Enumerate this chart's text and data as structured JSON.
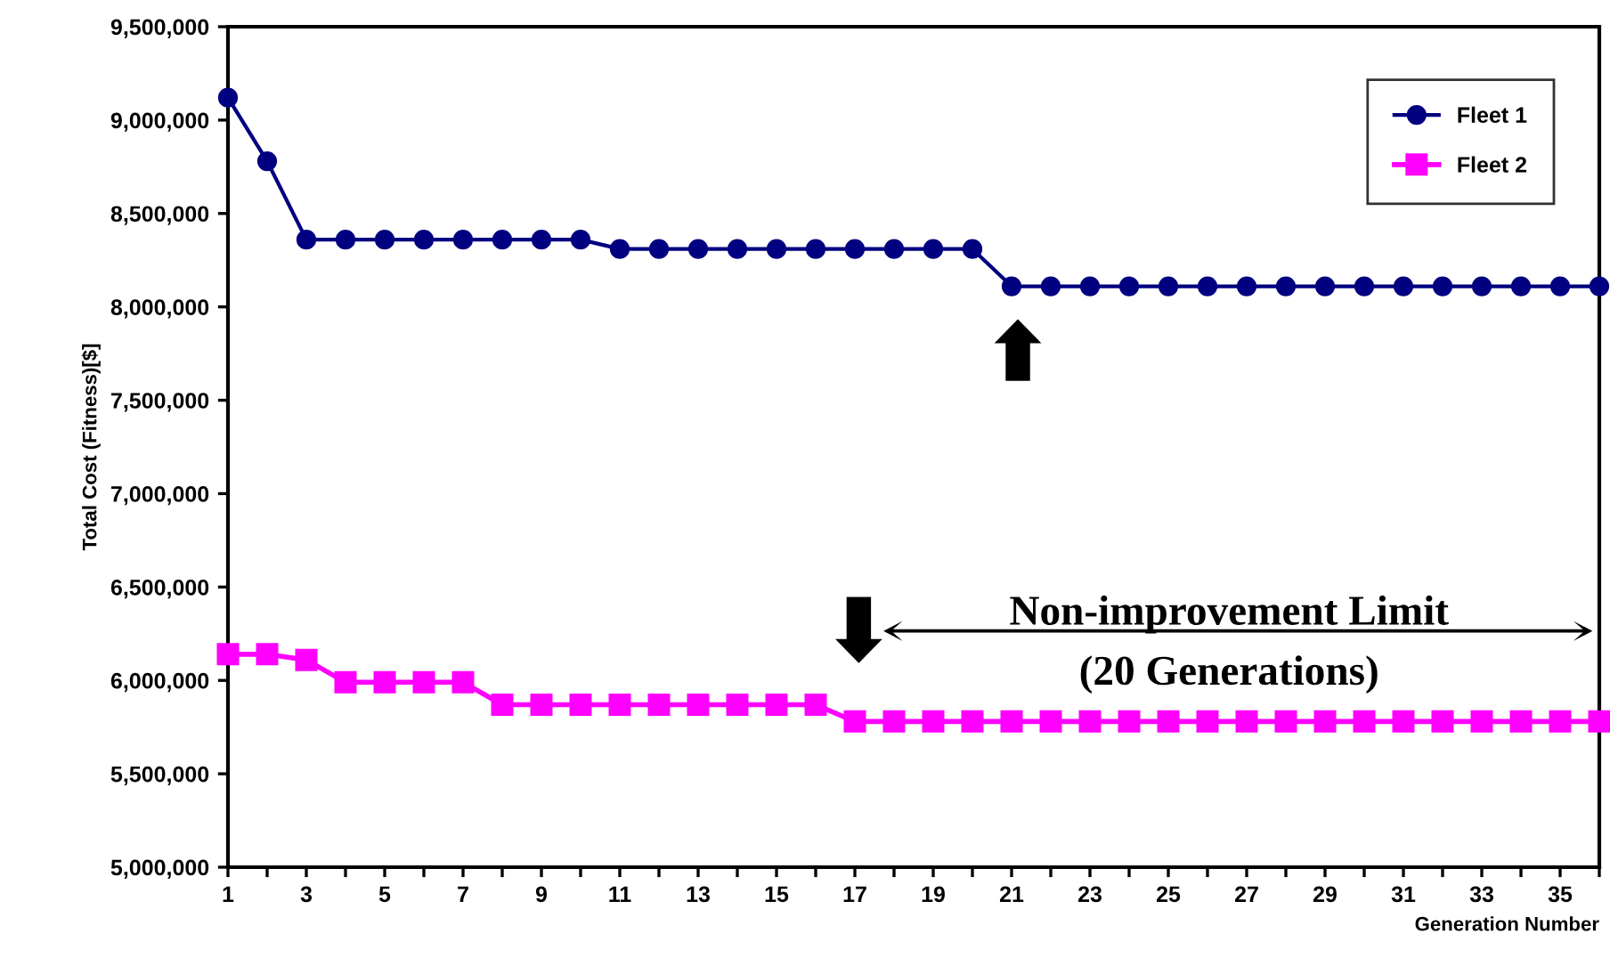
{
  "chart_data": {
    "type": "line",
    "xlabel": "Generation Number",
    "ylabel": "Total Cost (Fitness)[$]",
    "x": [
      1,
      2,
      3,
      4,
      5,
      6,
      7,
      8,
      9,
      10,
      11,
      12,
      13,
      14,
      15,
      16,
      17,
      18,
      19,
      20,
      21,
      22,
      23,
      24,
      25,
      26,
      27,
      28,
      29,
      30,
      31,
      32,
      33,
      34,
      35,
      36
    ],
    "series": [
      {
        "name": "Fleet 1",
        "color": "#000080",
        "marker": "circle",
        "values": [
          9120000,
          8780000,
          8360000,
          8360000,
          8360000,
          8360000,
          8360000,
          8360000,
          8360000,
          8360000,
          8310000,
          8310000,
          8310000,
          8310000,
          8310000,
          8310000,
          8310000,
          8310000,
          8310000,
          8310000,
          8110000,
          8110000,
          8110000,
          8110000,
          8110000,
          8110000,
          8110000,
          8110000,
          8110000,
          8110000,
          8110000,
          8110000,
          8110000,
          8110000,
          8110000,
          8110000
        ]
      },
      {
        "name": "Fleet 2",
        "color": "#ff00ff",
        "marker": "square",
        "values": [
          6140000,
          6140000,
          6110000,
          5990000,
          5990000,
          5990000,
          5990000,
          5870000,
          5870000,
          5870000,
          5870000,
          5870000,
          5870000,
          5870000,
          5870000,
          5870000,
          5780000,
          5780000,
          5780000,
          5780000,
          5780000,
          5780000,
          5780000,
          5780000,
          5780000,
          5780000,
          5780000,
          5780000,
          5780000,
          5780000,
          5780000,
          5780000,
          5780000,
          5780000,
          5780000,
          5780000
        ]
      }
    ],
    "xlim": [
      1,
      36
    ],
    "xticks": [
      1,
      {
        "value": 2,
        "label": null
      },
      3,
      {
        "value": 4,
        "label": null
      },
      5,
      {
        "value": 6,
        "label": null
      },
      7,
      {
        "value": 8,
        "label": null
      },
      9,
      {
        "value": 10,
        "label": null
      },
      11,
      {
        "value": 12,
        "label": null
      },
      13,
      {
        "value": 14,
        "label": null
      },
      15,
      {
        "value": 16,
        "label": null
      },
      17,
      {
        "value": 18,
        "label": null
      },
      19,
      {
        "value": 20,
        "label": null
      },
      21,
      {
        "value": 22,
        "label": null
      },
      23,
      {
        "value": 24,
        "label": null
      },
      25,
      {
        "value": 26,
        "label": null
      },
      27,
      {
        "value": 28,
        "label": null
      },
      29,
      {
        "value": 30,
        "label": null
      },
      31,
      {
        "value": 32,
        "label": null
      },
      33,
      {
        "value": 34,
        "label": null
      },
      35,
      {
        "value": 36,
        "label": null
      }
    ],
    "ylim": [
      5000000,
      9500000
    ],
    "yticks": [
      {
        "value": 5000000,
        "label": "5,000,000"
      },
      {
        "value": 5500000,
        "label": "5,500,000"
      },
      {
        "value": 6000000,
        "label": "6,000,000"
      },
      {
        "value": 6500000,
        "label": "6,500,000"
      },
      {
        "value": 7000000,
        "label": "7,000,000"
      },
      {
        "value": 7500000,
        "label": "7,500,000"
      },
      {
        "value": 8000000,
        "label": "8,000,000"
      },
      {
        "value": 8500000,
        "label": "8,500,000"
      },
      {
        "value": 9000000,
        "label": "9,000,000"
      },
      {
        "value": 9500000,
        "label": "9,500,000"
      }
    ],
    "annotations": [
      "Non-improvement Limit\n(20 Generations)"
    ],
    "grid": false,
    "legend": "top right",
    "line_style": "solid"
  }
}
